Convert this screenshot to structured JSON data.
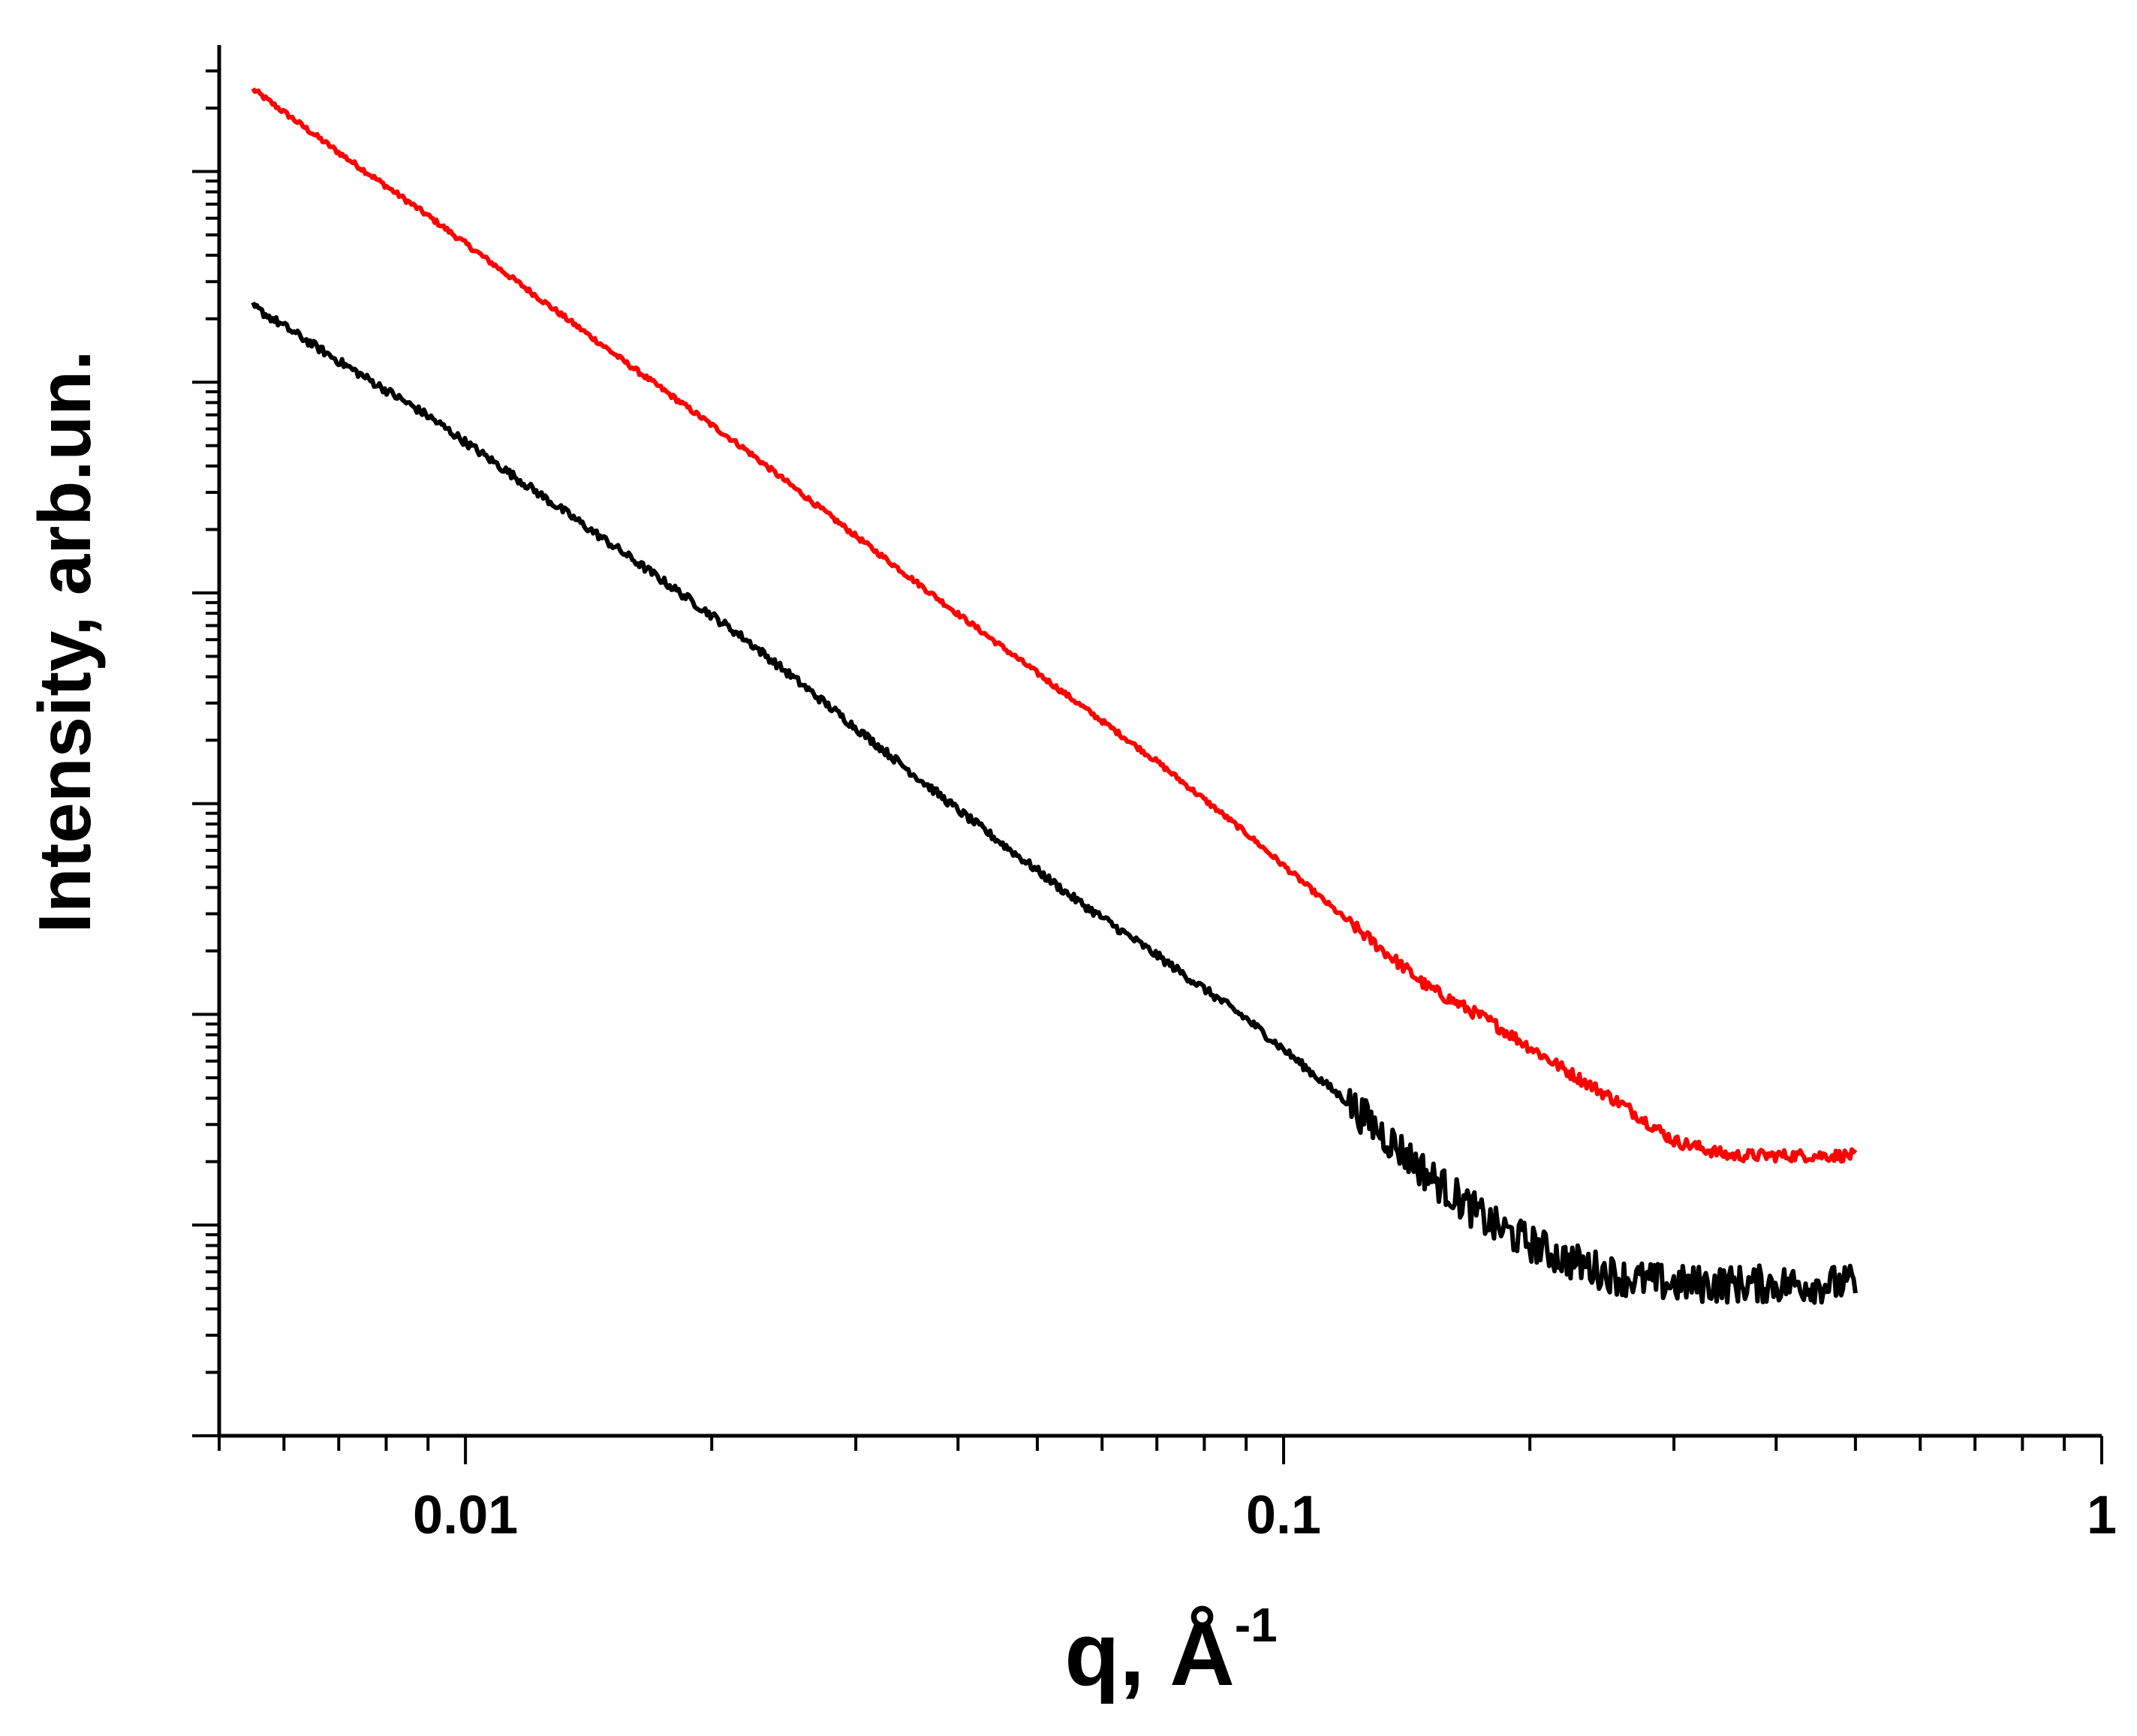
{
  "chart_data": {
    "type": "line",
    "title": "",
    "xlabel": "q, Å",
    "xlabel_superscript": "-1",
    "ylabel": "Intensity, arb.un.",
    "x_scale": "log",
    "y_scale": "log",
    "xlim": [
      0.005,
      1
    ],
    "ylim_decades": [
      0,
      6.6
    ],
    "xticks": [
      {
        "value": 0.01,
        "label": "0.01"
      },
      {
        "value": 0.1,
        "label": "0.1"
      },
      {
        "value": 1,
        "label": "1"
      }
    ],
    "y_tick_labels_shown": false,
    "grid": false,
    "legend": "none",
    "series": [
      {
        "color": "#ff0000",
        "noise": 0.012,
        "points": [
          [
            0.0055,
            6.39
          ],
          [
            0.007,
            6.09
          ],
          [
            0.009,
            5.79
          ],
          [
            0.012,
            5.43
          ],
          [
            0.016,
            5.07
          ],
          [
            0.022,
            4.68
          ],
          [
            0.03,
            4.27
          ],
          [
            0.04,
            3.9
          ],
          [
            0.055,
            3.5
          ],
          [
            0.07,
            3.2
          ],
          [
            0.09,
            2.86
          ],
          [
            0.12,
            2.44
          ],
          [
            0.15,
            2.13
          ],
          [
            0.18,
            1.96
          ],
          [
            0.22,
            1.74
          ],
          [
            0.26,
            1.57
          ],
          [
            0.3,
            1.4
          ],
          [
            0.35,
            1.33
          ],
          [
            0.42,
            1.33
          ],
          [
            0.5,
            1.33
          ]
        ]
      },
      {
        "color": "#000000",
        "noise": 0.02,
        "points": [
          [
            0.0055,
            5.36
          ],
          [
            0.007,
            5.1
          ],
          [
            0.009,
            4.84
          ],
          [
            0.012,
            4.5
          ],
          [
            0.016,
            4.16
          ],
          [
            0.022,
            3.78
          ],
          [
            0.03,
            3.36
          ],
          [
            0.04,
            2.97
          ],
          [
            0.055,
            2.56
          ],
          [
            0.07,
            2.28
          ],
          [
            0.09,
            1.98
          ],
          [
            0.12,
            1.58
          ],
          [
            0.15,
            1.24
          ],
          [
            0.18,
            1.0
          ],
          [
            0.22,
            0.84
          ],
          [
            0.26,
            0.75
          ],
          [
            0.3,
            0.72
          ],
          [
            0.35,
            0.72
          ],
          [
            0.42,
            0.72
          ],
          [
            0.5,
            0.72
          ]
        ]
      }
    ]
  }
}
